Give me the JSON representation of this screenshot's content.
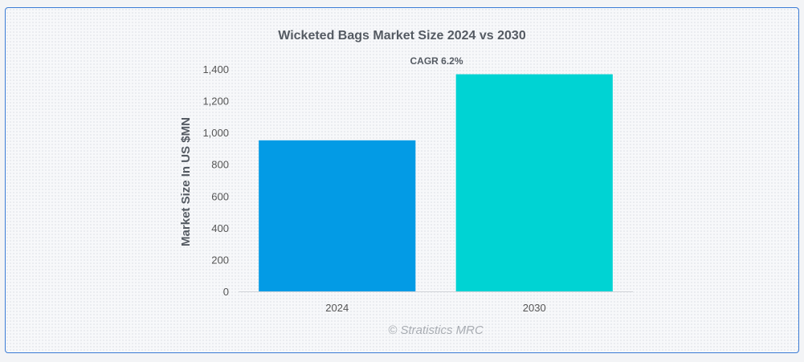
{
  "chart_data": {
    "type": "bar",
    "title": "Wicketed Bags Market Size 2024 vs 2030",
    "categories": [
      "2024",
      "2030"
    ],
    "values": [
      951,
      1367
    ],
    "colors": [
      "#039be5",
      "#00d3d3"
    ],
    "ylabel": "Market Size In US $MN",
    "xlabel": "",
    "ylim": [
      0,
      1400
    ],
    "yticks": [
      "0",
      "200",
      "400",
      "600",
      "800",
      "1,000",
      "1,200",
      "1,400"
    ],
    "annotation": "CAGR 6.2%",
    "grid": false,
    "legend": "none"
  },
  "credit": "© Stratistics MRC"
}
